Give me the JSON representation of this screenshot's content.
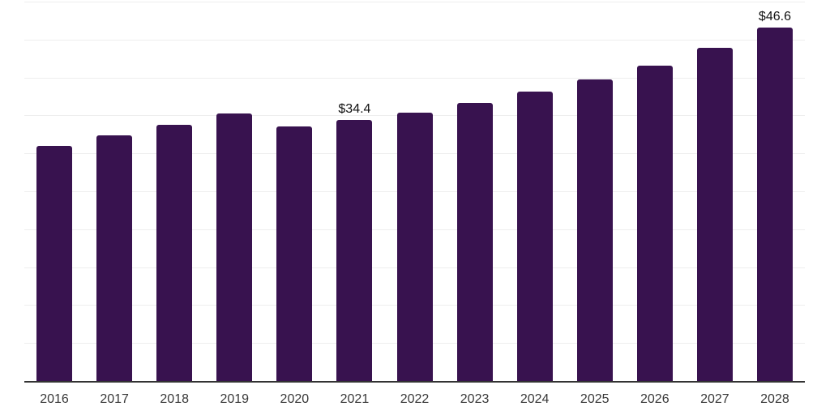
{
  "chart_data": {
    "type": "bar",
    "title": "",
    "xlabel": "",
    "ylabel": "",
    "categories": [
      "2016",
      "2017",
      "2018",
      "2019",
      "2020",
      "2021",
      "2022",
      "2023",
      "2024",
      "2025",
      "2026",
      "2027",
      "2028"
    ],
    "values": [
      31.0,
      32.4,
      33.8,
      35.3,
      33.6,
      34.4,
      35.4,
      36.6,
      38.1,
      39.7,
      41.6,
      43.9,
      46.6
    ],
    "data_labels": [
      {
        "index": 5,
        "text": "$34.4"
      },
      {
        "index": 12,
        "text": "$46.6"
      }
    ],
    "ylim": [
      0,
      50
    ],
    "gridline_step": 5,
    "grid": true,
    "legend": false,
    "y_axis_tick_labels_visible": false,
    "colors": {
      "bar": "#38124f",
      "axis_line": "#333333",
      "gridline": "#eeeeee",
      "x_tick_label": "#383838",
      "data_label": "#111111",
      "background": "#ffffff"
    }
  }
}
